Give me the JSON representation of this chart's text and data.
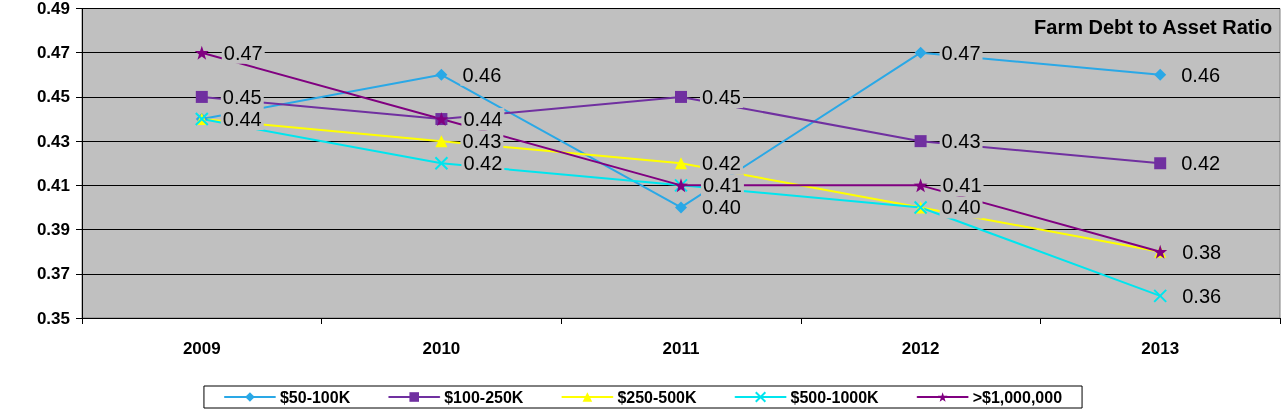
{
  "chart_data": {
    "type": "line",
    "title": "Farm Debt to Asset Ratio",
    "categories": [
      "2009",
      "2010",
      "2011",
      "2012",
      "2013"
    ],
    "series": [
      {
        "name": "$50-100K",
        "color": "#2aa8e6",
        "marker": "diamond",
        "values": [
          0.44,
          0.46,
          0.4,
          0.47,
          0.46
        ],
        "value_labels": [
          "0.44",
          "0.46",
          "0.40",
          "0.47",
          "0.46"
        ]
      },
      {
        "name": "$100-250K",
        "color": "#7030a0",
        "marker": "square",
        "values": [
          0.45,
          0.44,
          0.45,
          0.43,
          0.42
        ],
        "value_labels": [
          "0.45",
          null,
          "0.45",
          "0.43",
          "0.42"
        ]
      },
      {
        "name": "$250-500K",
        "color": "#ffff00",
        "marker": "triangle",
        "values": [
          0.44,
          0.43,
          0.42,
          0.4,
          0.38
        ],
        "value_labels": [
          null,
          "0.43",
          "0.42",
          "0.40",
          null
        ]
      },
      {
        "name": "$500-1000K",
        "color": "#00e5ee",
        "marker": "cross",
        "values": [
          0.44,
          0.42,
          0.41,
          0.4,
          0.36
        ],
        "value_labels": [
          null,
          "0.42",
          null,
          null,
          "0.36"
        ]
      },
      {
        "name": ">$1,000,000",
        "color": "#800080",
        "marker": "star",
        "values": [
          0.47,
          0.44,
          0.41,
          0.41,
          0.38
        ],
        "value_labels": [
          "0.47",
          "0.44",
          "0.41",
          "0.41",
          "0.38"
        ]
      }
    ],
    "ylim": [
      0.35,
      0.49
    ],
    "yticks": [
      0.35,
      0.37,
      0.39,
      0.41,
      0.43,
      0.45,
      0.47,
      0.49
    ],
    "grid": "y",
    "legend": "bottom"
  }
}
